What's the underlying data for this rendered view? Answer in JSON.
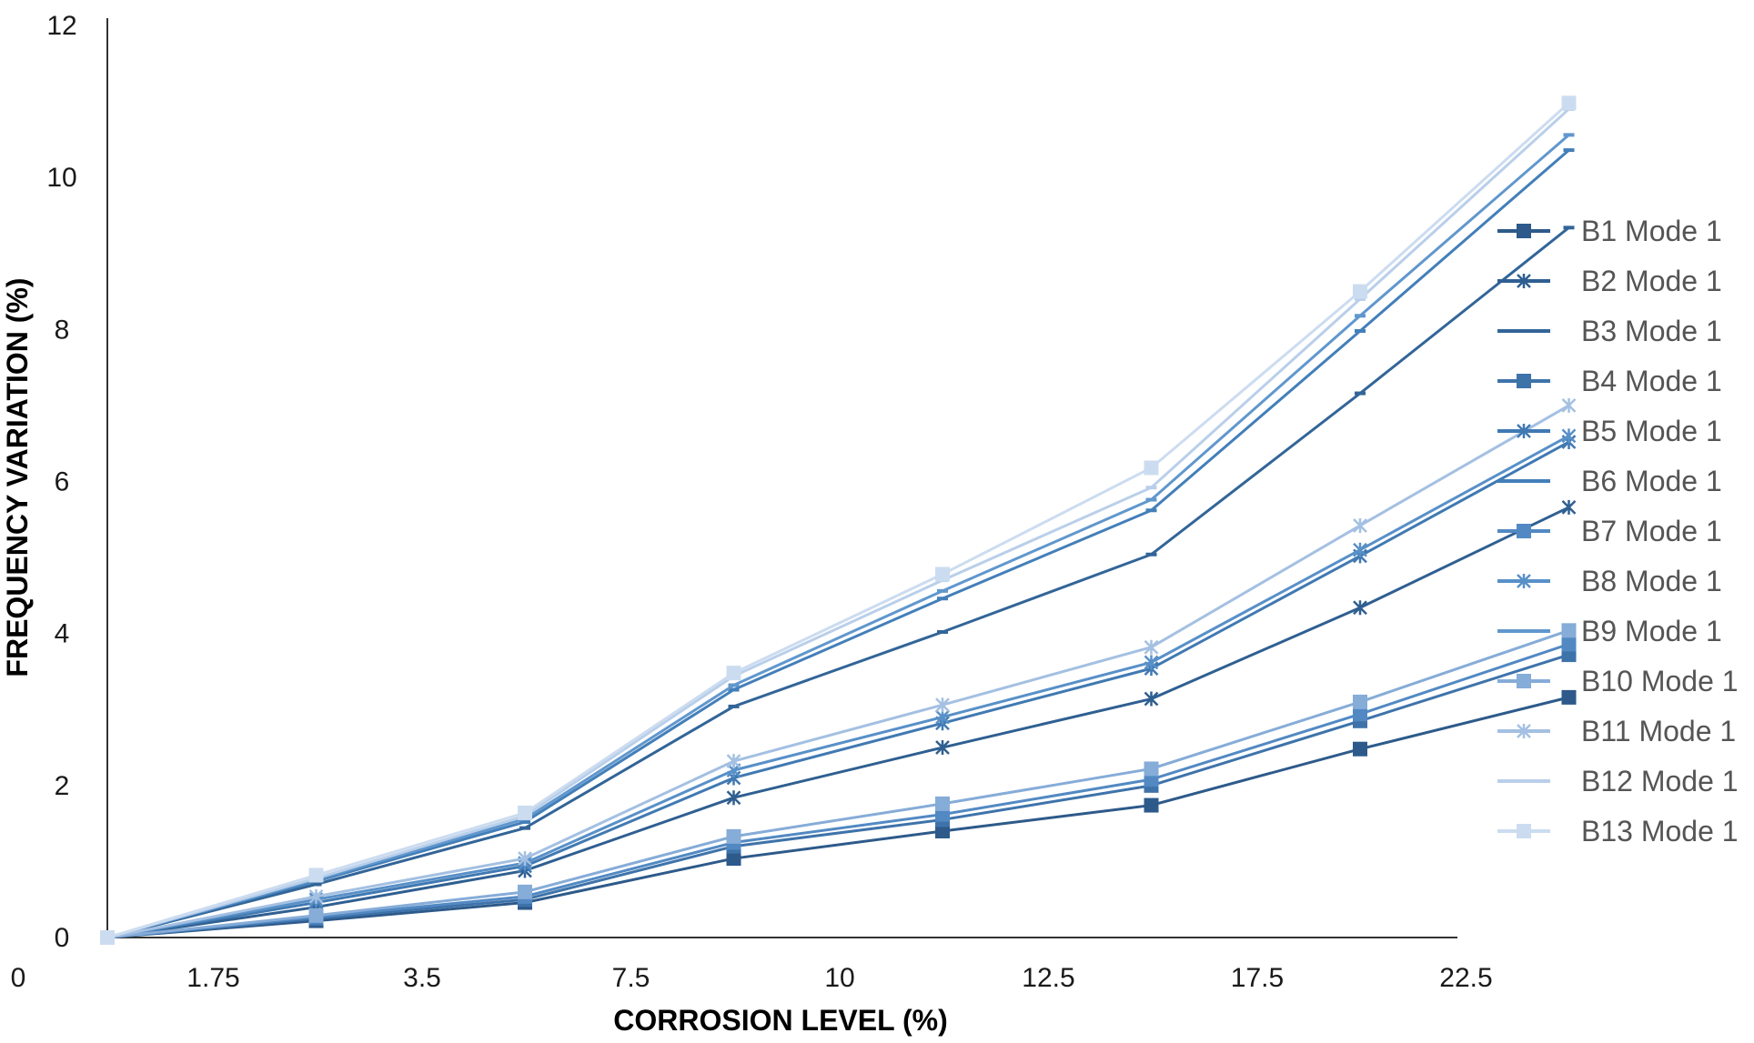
{
  "chart_data": {
    "type": "line",
    "title": "",
    "xlabel": "CORROSION LEVEL (%)",
    "ylabel": "FREQUENCY VARIATION (%)",
    "categories": [
      "0",
      "1.75",
      "3.5",
      "7.5",
      "10",
      "12.5",
      "17.5",
      "22.5"
    ],
    "origin_label": "0",
    "ylim": [
      0,
      12
    ],
    "y_ticks": [
      "0",
      "2",
      "4",
      "6",
      "8",
      "10",
      "12"
    ],
    "grid": false,
    "legend_position": "right",
    "series": [
      {
        "name": "B1 Mode 1",
        "marker": "square",
        "color": "#2d5a8a",
        "values": [
          0,
          0.22,
          0.46,
          1.04,
          1.4,
          1.74,
          2.48,
          3.16
        ]
      },
      {
        "name": "B2 Mode 1",
        "marker": "star",
        "color": "#2f5f91",
        "values": [
          0,
          0.4,
          0.88,
          1.84,
          2.5,
          3.14,
          4.34,
          5.66
        ]
      },
      {
        "name": "B3 Mode 1",
        "marker": "dash",
        "color": "#326598",
        "values": [
          0,
          0.7,
          1.44,
          3.04,
          4.02,
          5.04,
          7.16,
          9.34
        ]
      },
      {
        "name": "B4 Mode 1",
        "marker": "square",
        "color": "#3e73aa",
        "values": [
          0,
          0.25,
          0.5,
          1.2,
          1.55,
          2.0,
          2.85,
          3.72
        ]
      },
      {
        "name": "B5 Mode 1",
        "marker": "star",
        "color": "#4079b2",
        "values": [
          0,
          0.46,
          0.94,
          2.1,
          2.82,
          3.54,
          5.02,
          6.52
        ]
      },
      {
        "name": "B6 Mode 1",
        "marker": "dash",
        "color": "#437fb9",
        "values": [
          0,
          0.74,
          1.52,
          3.26,
          4.46,
          5.62,
          7.98,
          10.36
        ]
      },
      {
        "name": "B7 Mode 1",
        "marker": "square",
        "color": "#5289c3",
        "values": [
          0,
          0.27,
          0.54,
          1.25,
          1.62,
          2.08,
          2.94,
          3.86
        ]
      },
      {
        "name": "B8 Mode 1",
        "marker": "star",
        "color": "#5890c8",
        "values": [
          0,
          0.5,
          0.98,
          2.2,
          2.9,
          3.62,
          5.1,
          6.6
        ]
      },
      {
        "name": "B9 Mode 1",
        "marker": "dash",
        "color": "#6097cd",
        "values": [
          0,
          0.76,
          1.56,
          3.32,
          4.56,
          5.76,
          8.18,
          10.56
        ]
      },
      {
        "name": "B10 Mode 1",
        "marker": "square",
        "color": "#86acd8",
        "values": [
          0,
          0.29,
          0.6,
          1.33,
          1.76,
          2.22,
          3.1,
          4.04
        ]
      },
      {
        "name": "B11 Mode 1",
        "marker": "star",
        "color": "#a4c0e2",
        "values": [
          0,
          0.54,
          1.04,
          2.32,
          3.06,
          3.82,
          5.42,
          7.0
        ]
      },
      {
        "name": "B12 Mode 1",
        "marker": "dash",
        "color": "#b9cfea",
        "values": [
          0,
          0.78,
          1.6,
          3.44,
          4.7,
          5.92,
          8.4,
          10.9
        ]
      },
      {
        "name": "B13 Mode 1",
        "marker": "square",
        "color": "#ccdcf0",
        "values": [
          0,
          0.82,
          1.64,
          3.48,
          4.78,
          6.18,
          8.5,
          10.98
        ]
      }
    ]
  }
}
